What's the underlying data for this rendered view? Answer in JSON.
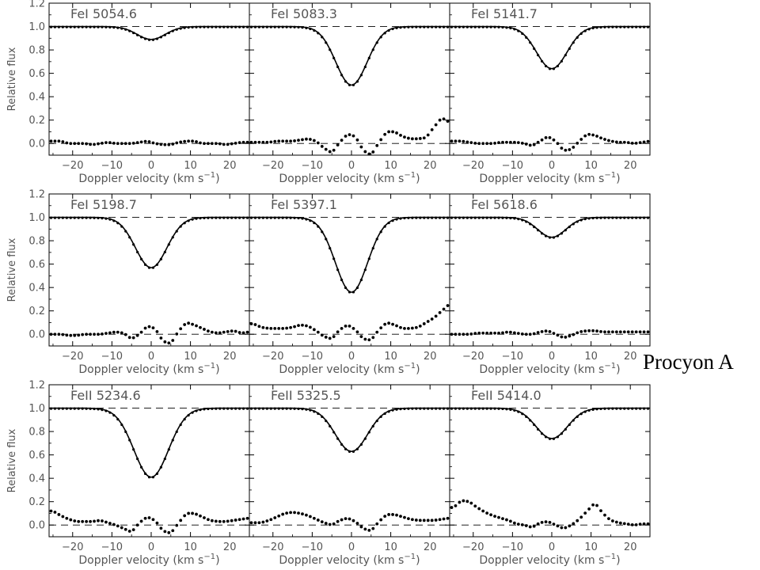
{
  "figure_label": "Procyon A",
  "chart_data": {
    "type": "line",
    "xlabel": "Doppler velocity (km s",
    "xlabel_sup": "−1",
    "xlabel_end": ")",
    "ylabel": "Relative flux",
    "xlim": [
      -26,
      25
    ],
    "ylim": [
      -0.1,
      1.2
    ],
    "xticks": [
      -20,
      -10,
      0,
      10,
      20
    ],
    "xtick_labels": [
      "−20",
      "−10",
      "0",
      "10",
      "20"
    ],
    "yticks": [
      0.0,
      0.2,
      0.4,
      0.6,
      0.8,
      1.0,
      1.2
    ],
    "ytick_labels": [
      "0.0",
      "0.2",
      "0.4",
      "0.6",
      "0.8",
      "1.0",
      "1.2"
    ],
    "reference_lines": [
      1.0,
      0.0
    ],
    "panels": [
      {
        "title": "FeI 5054.6",
        "row": 0,
        "col": 0,
        "model": {
          "depth": 0.11,
          "center": 0.0,
          "sigma": 3.6
        },
        "residual_x": [
          -25,
          -23,
          -21,
          -19,
          -17,
          -15,
          -13,
          -11,
          -9,
          -7,
          -5,
          -3,
          -1,
          1,
          3,
          5,
          7,
          9,
          11,
          13,
          15,
          17,
          19,
          21,
          23,
          25
        ],
        "residual_y": [
          0.02,
          0.02,
          0.0,
          0.0,
          0.0,
          -0.01,
          0.0,
          0.01,
          0.0,
          0.0,
          0.0,
          0.01,
          0.02,
          0.0,
          -0.01,
          -0.01,
          0.01,
          0.02,
          0.02,
          0.0,
          0.0,
          0.0,
          -0.01,
          0.0,
          0.01,
          0.01
        ]
      },
      {
        "title": "FeI 5083.3",
        "row": 0,
        "col": 1,
        "model": {
          "depth": 0.5,
          "center": 0.0,
          "sigma": 4.0
        },
        "residual_x": [
          -25,
          -23,
          -21,
          -19,
          -17,
          -15,
          -13,
          -11,
          -9,
          -7,
          -5,
          -3,
          -1,
          1,
          3,
          5,
          7,
          9,
          11,
          13,
          15,
          17,
          19,
          21,
          23,
          25
        ],
        "residual_y": [
          0.01,
          0.01,
          0.01,
          0.02,
          0.02,
          0.02,
          0.03,
          0.04,
          0.02,
          -0.04,
          -0.08,
          0.01,
          0.08,
          0.06,
          -0.06,
          -0.1,
          0.01,
          0.1,
          0.1,
          0.06,
          0.04,
          0.04,
          0.05,
          0.14,
          0.22,
          0.18
        ]
      },
      {
        "title": "FeI 5141.7",
        "row": 0,
        "col": 2,
        "model": {
          "depth": 0.36,
          "center": 0.0,
          "sigma": 3.9
        },
        "residual_x": [
          -25,
          -23,
          -21,
          -19,
          -17,
          -15,
          -13,
          -11,
          -9,
          -7,
          -5,
          -3,
          -1,
          1,
          3,
          5,
          7,
          9,
          11,
          13,
          15,
          17,
          19,
          21,
          23,
          25
        ],
        "residual_y": [
          0.02,
          0.02,
          0.01,
          0.0,
          0.0,
          0.0,
          0.01,
          0.01,
          0.01,
          0.0,
          -0.02,
          0.02,
          0.06,
          0.02,
          -0.06,
          -0.05,
          0.02,
          0.08,
          0.07,
          0.04,
          0.02,
          0.01,
          0.01,
          0.0,
          0.01,
          0.02
        ]
      },
      {
        "title": "FeI 5198.7",
        "row": 1,
        "col": 0,
        "model": {
          "depth": 0.43,
          "center": 0.0,
          "sigma": 4.0
        },
        "residual_x": [
          -25,
          -23,
          -21,
          -19,
          -17,
          -15,
          -13,
          -11,
          -9,
          -7,
          -5,
          -3,
          -1,
          1,
          3,
          5,
          7,
          9,
          11,
          13,
          15,
          17,
          19,
          21,
          23,
          25
        ],
        "residual_y": [
          0.0,
          0.0,
          -0.01,
          -0.01,
          0.0,
          0.0,
          0.0,
          0.01,
          0.02,
          0.01,
          -0.04,
          0.0,
          0.07,
          0.05,
          -0.06,
          -0.08,
          0.03,
          0.1,
          0.08,
          0.05,
          0.02,
          0.01,
          0.02,
          0.03,
          0.01,
          0.02
        ]
      },
      {
        "title": "FeI 5397.1",
        "row": 1,
        "col": 1,
        "model": {
          "depth": 0.64,
          "center": 0.0,
          "sigma": 4.1
        },
        "residual_x": [
          -25,
          -23,
          -21,
          -19,
          -17,
          -15,
          -13,
          -11,
          -9,
          -7,
          -5,
          -3,
          -1,
          1,
          3,
          5,
          7,
          9,
          11,
          13,
          15,
          17,
          19,
          21,
          23,
          25
        ],
        "residual_y": [
          0.09,
          0.06,
          0.05,
          0.05,
          0.05,
          0.06,
          0.08,
          0.07,
          0.03,
          -0.02,
          -0.04,
          0.04,
          0.08,
          0.04,
          -0.04,
          -0.05,
          0.04,
          0.1,
          0.08,
          0.05,
          0.05,
          0.06,
          0.1,
          0.14,
          0.2,
          0.26
        ]
      },
      {
        "title": "FeI 5618.6",
        "row": 1,
        "col": 2,
        "model": {
          "depth": 0.17,
          "center": 0.0,
          "sigma": 3.6
        },
        "residual_x": [
          -25,
          -23,
          -21,
          -19,
          -17,
          -15,
          -13,
          -11,
          -9,
          -7,
          -5,
          -3,
          -1,
          1,
          3,
          5,
          7,
          9,
          11,
          13,
          15,
          17,
          19,
          21,
          23,
          25
        ],
        "residual_y": [
          0.0,
          0.0,
          0.0,
          0.01,
          0.01,
          0.01,
          0.01,
          0.02,
          0.01,
          0.0,
          0.0,
          0.02,
          0.03,
          0.0,
          -0.03,
          -0.01,
          0.02,
          0.03,
          0.03,
          0.02,
          0.02,
          0.02,
          0.02,
          0.02,
          0.02,
          0.02
        ]
      },
      {
        "title": "FeII 5234.6",
        "row": 2,
        "col": 0,
        "model": {
          "depth": 0.59,
          "center": 0.0,
          "sigma": 4.4
        },
        "residual_x": [
          -25,
          -23,
          -21,
          -19,
          -17,
          -15,
          -13,
          -11,
          -9,
          -7,
          -5,
          -3,
          -1,
          1,
          3,
          5,
          7,
          9,
          11,
          13,
          15,
          17,
          19,
          21,
          23,
          25
        ],
        "residual_y": [
          0.12,
          0.08,
          0.05,
          0.03,
          0.03,
          0.03,
          0.04,
          0.02,
          0.0,
          -0.03,
          -0.06,
          0.02,
          0.07,
          0.04,
          -0.05,
          -0.07,
          0.02,
          0.1,
          0.1,
          0.07,
          0.04,
          0.03,
          0.03,
          0.04,
          0.05,
          0.06
        ]
      },
      {
        "title": "FeII 5325.5",
        "row": 2,
        "col": 1,
        "model": {
          "depth": 0.37,
          "center": 0.0,
          "sigma": 4.1
        },
        "residual_x": [
          -25,
          -23,
          -21,
          -19,
          -17,
          -15,
          -13,
          -11,
          -9,
          -7,
          -5,
          -3,
          -1,
          1,
          3,
          5,
          7,
          9,
          11,
          13,
          15,
          17,
          19,
          21,
          23,
          25
        ],
        "residual_y": [
          0.02,
          0.02,
          0.04,
          0.07,
          0.1,
          0.11,
          0.1,
          0.08,
          0.05,
          0.02,
          0.0,
          0.04,
          0.06,
          0.03,
          -0.03,
          -0.05,
          0.03,
          0.09,
          0.09,
          0.07,
          0.05,
          0.04,
          0.04,
          0.04,
          0.05,
          0.06
        ]
      },
      {
        "title": "FeII 5414.0",
        "row": 2,
        "col": 2,
        "model": {
          "depth": 0.26,
          "center": 0.0,
          "sigma": 4.0
        },
        "residual_x": [
          -25,
          -23,
          -21,
          -19,
          -17,
          -15,
          -13,
          -11,
          -9,
          -7,
          -5,
          -3,
          -1,
          1,
          3,
          5,
          7,
          9,
          11,
          13,
          15,
          17,
          19,
          21,
          23,
          25
        ],
        "residual_y": [
          0.15,
          0.21,
          0.2,
          0.15,
          0.11,
          0.08,
          0.06,
          0.04,
          0.01,
          0.0,
          -0.02,
          0.02,
          0.03,
          0.0,
          -0.03,
          0.0,
          0.05,
          0.12,
          0.19,
          0.1,
          0.04,
          0.02,
          0.01,
          0.0,
          0.01,
          0.01
        ]
      }
    ]
  }
}
